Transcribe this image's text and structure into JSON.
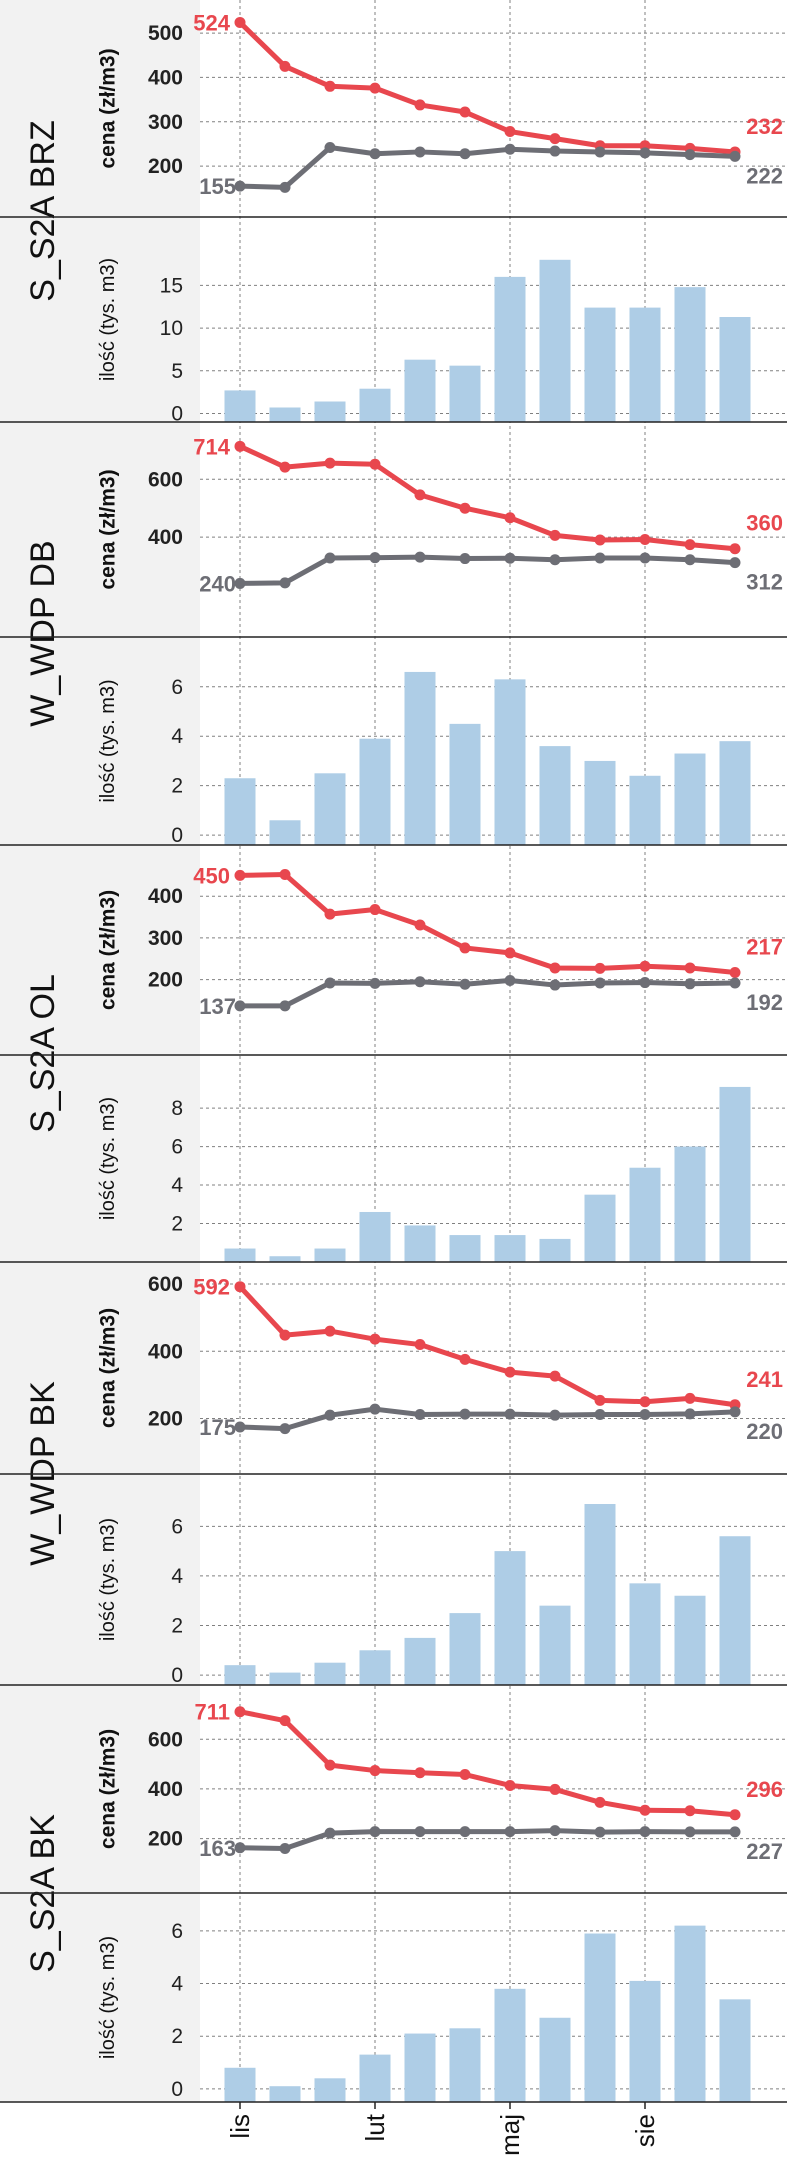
{
  "x_tick_labels": [
    "lis",
    "lut",
    "maj",
    "sie"
  ],
  "price_axis_label": "cena (zł/m3)",
  "qty_axis_label": "ilość (tys. m3)",
  "colors": {
    "price_high": "#e8474e",
    "price_low": "#6d6e75",
    "volume_bar": "#aecde6",
    "panel_label_bg": "#f2f2f2",
    "grid": "#808080"
  },
  "chart_data": [
    {
      "type": "line+bar",
      "group": "S_S2A BRZ",
      "price_ylim": [
        180,
        525
      ],
      "price_yticks": [
        200,
        300,
        400,
        500
      ],
      "series": [
        {
          "name": "",
          "role": "high",
          "values": [
            524,
            425,
            380,
            376,
            338,
            322,
            278,
            262,
            246,
            246,
            240,
            232
          ]
        },
        {
          "name": "",
          "role": "low",
          "values": [
            155,
            152,
            242,
            228,
            232,
            228,
            238,
            234,
            232,
            230,
            226,
            222
          ]
        }
      ],
      "labels": {
        "high_start": "524",
        "high_end": "232",
        "low_start": "155",
        "low_end": "222"
      },
      "qty_ylim": [
        -1,
        19.5
      ],
      "qty_yticks": [
        0,
        5,
        10,
        15
      ],
      "quantity": [
        2.7,
        0.7,
        1.4,
        2.9,
        6.3,
        5.6,
        16.0,
        18.0,
        12.4,
        12.4,
        14.8,
        11.3
      ]
    },
    {
      "type": "line+bar",
      "group": "W_WDP DB",
      "price_ylim": [
        200,
        722
      ],
      "price_yticks": [
        400,
        600
      ],
      "series": [
        {
          "name": "",
          "role": "high",
          "values": [
            714,
            642,
            656,
            652,
            546,
            500,
            467,
            406,
            390,
            392,
            374,
            360
          ]
        },
        {
          "name": "",
          "role": "low",
          "values": [
            240,
            242,
            328,
            329,
            331,
            326,
            327,
            322,
            328,
            328,
            322,
            312
          ]
        }
      ],
      "labels": {
        "high_start": "714",
        "high_end": "360",
        "low_start": "240",
        "low_end": "312"
      },
      "qty_ylim": [
        -0.4,
        6.8
      ],
      "qty_yticks": [
        0,
        2,
        4,
        6
      ],
      "quantity": [
        2.3,
        0.6,
        2.5,
        3.9,
        6.6,
        4.5,
        6.3,
        3.6,
        3.0,
        2.4,
        3.3,
        3.8
      ]
    },
    {
      "type": "line+bar",
      "group": "S_S2A OL",
      "price_ylim": [
        120,
        470
      ],
      "price_yticks": [
        200,
        300,
        400
      ],
      "series": [
        {
          "name": "",
          "role": "high",
          "values": [
            450,
            452,
            357,
            368,
            331,
            276,
            264,
            228,
            227,
            232,
            228,
            217
          ]
        },
        {
          "name": "",
          "role": "low",
          "values": [
            137,
            137,
            192,
            191,
            195,
            189,
            198,
            187,
            192,
            193,
            190,
            192
          ]
        }
      ],
      "labels": {
        "high_start": "450",
        "high_end": "217",
        "low_start": "137",
        "low_end": "192"
      },
      "qty_ylim": [
        0,
        9.2
      ],
      "qty_yticks": [
        2,
        4,
        6,
        8
      ],
      "quantity": [
        0.7,
        0.3,
        0.7,
        2.6,
        1.9,
        1.4,
        1.4,
        1.2,
        3.5,
        4.9,
        6.0,
        9.1
      ]
    },
    {
      "type": "line+bar",
      "group": "W_WDP BK",
      "price_ylim": [
        160,
        600
      ],
      "price_yticks": [
        200,
        400,
        600
      ],
      "series": [
        {
          "name": "",
          "role": "high",
          "values": [
            592,
            448,
            460,
            436,
            420,
            376,
            338,
            326,
            254,
            250,
            260,
            241
          ]
        },
        {
          "name": "",
          "role": "low",
          "values": [
            175,
            170,
            210,
            228,
            212,
            213,
            213,
            210,
            212,
            212,
            214,
            220
          ]
        }
      ],
      "labels": {
        "high_start": "592",
        "high_end": "241",
        "low_start": "175",
        "low_end": "220"
      },
      "qty_ylim": [
        -0.4,
        6.9
      ],
      "qty_yticks": [
        0,
        2,
        4,
        6
      ],
      "quantity": [
        0.4,
        0.1,
        0.5,
        1.0,
        1.5,
        2.5,
        5.0,
        2.8,
        6.9,
        3.7,
        3.2,
        5.6
      ]
    },
    {
      "type": "line+bar",
      "group": "S_S2A BK",
      "price_ylim": [
        150,
        730
      ],
      "price_yticks": [
        200,
        400,
        600
      ],
      "series": [
        {
          "name": "",
          "role": "high",
          "values": [
            711,
            675,
            496,
            474,
            465,
            458,
            414,
            398,
            346,
            314,
            312,
            296
          ]
        },
        {
          "name": "",
          "role": "low",
          "values": [
            163,
            160,
            222,
            228,
            228,
            228,
            228,
            232,
            226,
            228,
            227,
            227
          ]
        }
      ],
      "labels": {
        "high_start": "711",
        "high_end": "296",
        "low_start": "163",
        "low_end": "227"
      },
      "qty_ylim": [
        -0.5,
        6.3
      ],
      "qty_yticks": [
        0,
        2,
        4,
        6
      ],
      "quantity": [
        0.8,
        0.1,
        0.4,
        1.3,
        2.1,
        2.3,
        3.8,
        2.7,
        5.9,
        4.1,
        6.2,
        3.4
      ]
    }
  ]
}
